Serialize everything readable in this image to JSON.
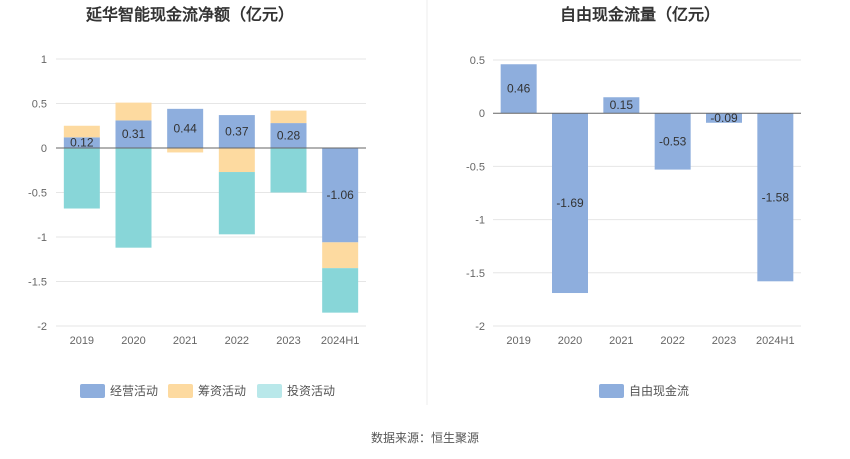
{
  "colors": {
    "operating": "#8eaedd",
    "financing": "#fddaa0",
    "investing": "#88d6d8",
    "investing_legend": "#b9e8ea",
    "free": "#8eaedd"
  },
  "chart_data": [
    {
      "type": "bar",
      "stacked": true,
      "title": "延华智能现金流净额（亿元）",
      "categories": [
        "2019",
        "2020",
        "2021",
        "2022",
        "2023",
        "2024H1"
      ],
      "ylim": [
        -2,
        1
      ],
      "yticks": [
        "1",
        "0.5",
        "0",
        "-0.5",
        "-1",
        "-1.5",
        "-2"
      ],
      "ytick_values": [
        1,
        0.5,
        0,
        -0.5,
        -1,
        -1.5,
        -2
      ],
      "grid": true,
      "legend": "bottom",
      "series": [
        {
          "name": "经营活动",
          "values": [
            0.12,
            0.31,
            0.44,
            0.37,
            0.28,
            -1.06
          ],
          "labels": [
            "0.12",
            "0.31",
            "0.44",
            "0.37",
            "0.28",
            "-1.06"
          ]
        },
        {
          "name": "筹资活动",
          "values": [
            0.13,
            0.2,
            -0.05,
            -0.27,
            0.14,
            -0.29
          ]
        },
        {
          "name": "投资活动",
          "values": [
            -0.68,
            -1.12,
            0,
            -0.7,
            -0.5,
            -0.5
          ]
        }
      ]
    },
    {
      "type": "bar",
      "title": "自由现金流量（亿元）",
      "categories": [
        "2019",
        "2020",
        "2021",
        "2022",
        "2023",
        "2024H1"
      ],
      "ylim": [
        -2,
        0.5
      ],
      "yticks": [
        "0.5",
        "0",
        "-0.5",
        "-1",
        "-1.5",
        "-2"
      ],
      "ytick_values": [
        0.5,
        0,
        -0.5,
        -1,
        -1.5,
        -2
      ],
      "grid": true,
      "legend": "bottom",
      "series": [
        {
          "name": "自由现金流",
          "values": [
            0.46,
            -1.69,
            0.15,
            -0.53,
            -0.09,
            -1.58
          ],
          "labels": [
            "0.46",
            "-1.69",
            "0.15",
            "-0.53",
            "-0.09",
            "-1.58"
          ]
        }
      ]
    }
  ],
  "footer": {
    "source": "数据来源：恒生聚源"
  }
}
